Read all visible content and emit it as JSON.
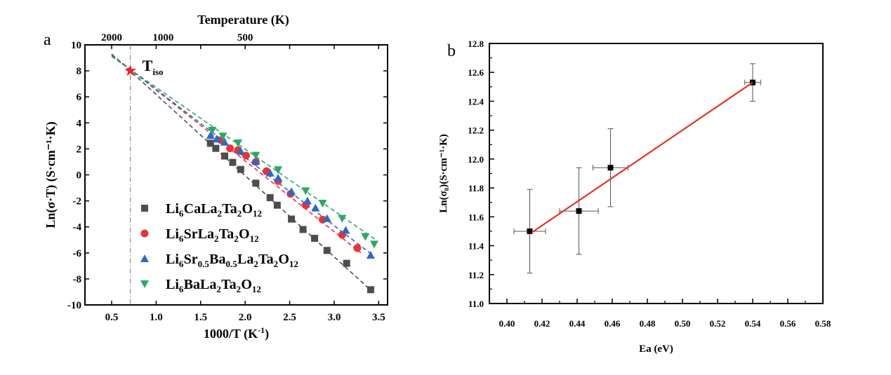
{
  "chart_data": [
    {
      "panel_label": "a",
      "type": "scatter",
      "xlabel": "1000/T (K",
      "xlabel_sup": "-1",
      "xlabel_end": ")",
      "ylabel": "Ln(σ·T) (S·cm⁻¹·K)",
      "top_axis_label": "Temperature (K)",
      "top_ticks": [
        {
          "label": "2000",
          "x": 0.5
        },
        {
          "label": "1000",
          "x": 1.0
        },
        {
          "label": "500",
          "x": 2.0
        }
      ],
      "xlim": [
        0.2,
        3.6
      ],
      "ylim": [
        -10,
        10
      ],
      "xticks": [
        "0.5",
        "1.0",
        "1.5",
        "2.0",
        "2.5",
        "3.0",
        "3.5"
      ],
      "yticks": [
        "-10",
        "-8",
        "-6",
        "-4",
        "-2",
        "0",
        "2",
        "4",
        "6",
        "8",
        "10"
      ],
      "legend_placement": "bottom-left",
      "annotation": {
        "text": "T",
        "sub": "iso",
        "x": 0.71,
        "y": 8.0,
        "color": "#e8262b"
      },
      "series": [
        {
          "name": "Li6CaLa2Ta2O12",
          "legend": [
            [
              "Li",
              ""
            ],
            [
              "6",
              "sub"
            ],
            [
              "CaLa",
              ""
            ],
            [
              "2",
              "sub"
            ],
            [
              "Ta",
              ""
            ],
            [
              "2",
              "sub"
            ],
            [
              "O",
              ""
            ],
            [
              "12",
              "sub"
            ]
          ],
          "marker": "square",
          "color": "#4d4d4d",
          "x": [
            1.61,
            1.67,
            1.77,
            1.86,
            1.95,
            2.12,
            2.28,
            2.36,
            2.52,
            2.65,
            2.78,
            2.92,
            3.14,
            3.41
          ],
          "y": [
            2.43,
            2.04,
            1.45,
            0.96,
            0.42,
            -0.64,
            -1.75,
            -2.33,
            -3.4,
            -4.2,
            -4.88,
            -5.81,
            -6.8,
            -8.83
          ],
          "fit": [
            [
              0.5,
              9.3
            ],
            [
              3.4,
              -8.8
            ]
          ]
        },
        {
          "name": "Li6SrLa2Ta2O12",
          "legend": [
            [
              "Li",
              ""
            ],
            [
              "6",
              "sub"
            ],
            [
              "SrLa",
              ""
            ],
            [
              "2",
              "sub"
            ],
            [
              "Ta",
              ""
            ],
            [
              "2",
              "sub"
            ],
            [
              "O",
              ""
            ],
            [
              "12",
              "sub"
            ]
          ],
          "marker": "circle",
          "color": "#e8323a",
          "x": [
            1.73,
            1.83,
            1.92,
            2.01,
            2.12,
            2.24,
            2.37,
            2.51,
            2.68,
            2.87,
            3.09,
            3.26
          ],
          "y": [
            2.67,
            2.04,
            1.91,
            1.48,
            1.0,
            0.28,
            -0.48,
            -1.46,
            -2.33,
            -3.44,
            -4.61,
            -5.63
          ],
          "fit": [
            [
              0.5,
              9.25
            ],
            [
              3.3,
              -6.0
            ]
          ]
        },
        {
          "name": "Li6Sr0.5Ba0.5La2Ta2O12",
          "legend": [
            [
              "Li",
              ""
            ],
            [
              "6",
              "sub"
            ],
            [
              "Sr",
              ""
            ],
            [
              "0.5",
              "sub"
            ],
            [
              "Ba",
              ""
            ],
            [
              "0.5",
              "sub"
            ],
            [
              "La",
              ""
            ],
            [
              "2",
              "sub"
            ],
            [
              "Ta",
              ""
            ],
            [
              "2",
              "sub"
            ],
            [
              "O",
              ""
            ],
            [
              "12",
              "sub"
            ]
          ],
          "marker": "triangle-up",
          "color": "#2a6ac8",
          "x": [
            1.61,
            1.68,
            1.77,
            1.95,
            2.12,
            2.28,
            2.37,
            2.52,
            2.7,
            2.79,
            2.92,
            3.13,
            3.41
          ],
          "y": [
            3.03,
            2.76,
            2.52,
            1.82,
            1.05,
            0.15,
            -0.24,
            -1.28,
            -2.0,
            -2.54,
            -3.35,
            -4.25,
            -6.17
          ],
          "fit": [
            [
              0.5,
              9.2
            ],
            [
              3.4,
              -6.0
            ]
          ]
        },
        {
          "name": "Li6BaLa2Ta2O12",
          "legend": [
            [
              "Li",
              ""
            ],
            [
              "6",
              "sub"
            ],
            [
              "BaLa",
              ""
            ],
            [
              "2",
              "sub"
            ],
            [
              "Ta",
              ""
            ],
            [
              "2",
              "sub"
            ],
            [
              "O",
              ""
            ],
            [
              "12",
              "sub"
            ]
          ],
          "marker": "triangle-down",
          "color": "#2ba862",
          "x": [
            1.63,
            1.75,
            1.92,
            2.12,
            2.37,
            2.68,
            2.87,
            3.09,
            3.35,
            3.45
          ],
          "y": [
            3.42,
            2.97,
            2.45,
            1.5,
            0.39,
            -1.23,
            -2.18,
            -3.35,
            -4.75,
            -5.33
          ],
          "fit": [
            [
              0.5,
              9.1
            ],
            [
              3.47,
              -5.0
            ]
          ]
        }
      ]
    },
    {
      "panel_label": "b",
      "type": "scatter",
      "xlabel": "Ea (eV)",
      "ylabel": "Ln(σ₀)(S·cm⁻¹·K)",
      "xlim": [
        0.39,
        0.58
      ],
      "ylim": [
        11.0,
        12.8
      ],
      "xticks": [
        "0.40",
        "0.42",
        "0.44",
        "0.46",
        "0.48",
        "0.50",
        "0.52",
        "0.54",
        "0.56",
        "0.58"
      ],
      "yticks": [
        "11.0",
        "11.2",
        "11.4",
        "11.6",
        "11.8",
        "12.0",
        "12.2",
        "12.4",
        "12.6",
        "12.8"
      ],
      "marker": "square",
      "color": "#000000",
      "fit_color": "#e8321e",
      "points": [
        {
          "x": 0.413,
          "y": 11.5,
          "xerr": 0.009,
          "yerr": 0.29
        },
        {
          "x": 0.441,
          "y": 11.64,
          "xerr": 0.011,
          "yerr": 0.3
        },
        {
          "x": 0.459,
          "y": 11.94,
          "xerr": 0.01,
          "yerr": 0.27
        },
        {
          "x": 0.54,
          "y": 12.53,
          "xerr": 0.0045,
          "yerr": 0.13
        }
      ],
      "fit": [
        [
          0.414,
          11.49
        ],
        [
          0.54,
          12.53
        ]
      ]
    }
  ]
}
